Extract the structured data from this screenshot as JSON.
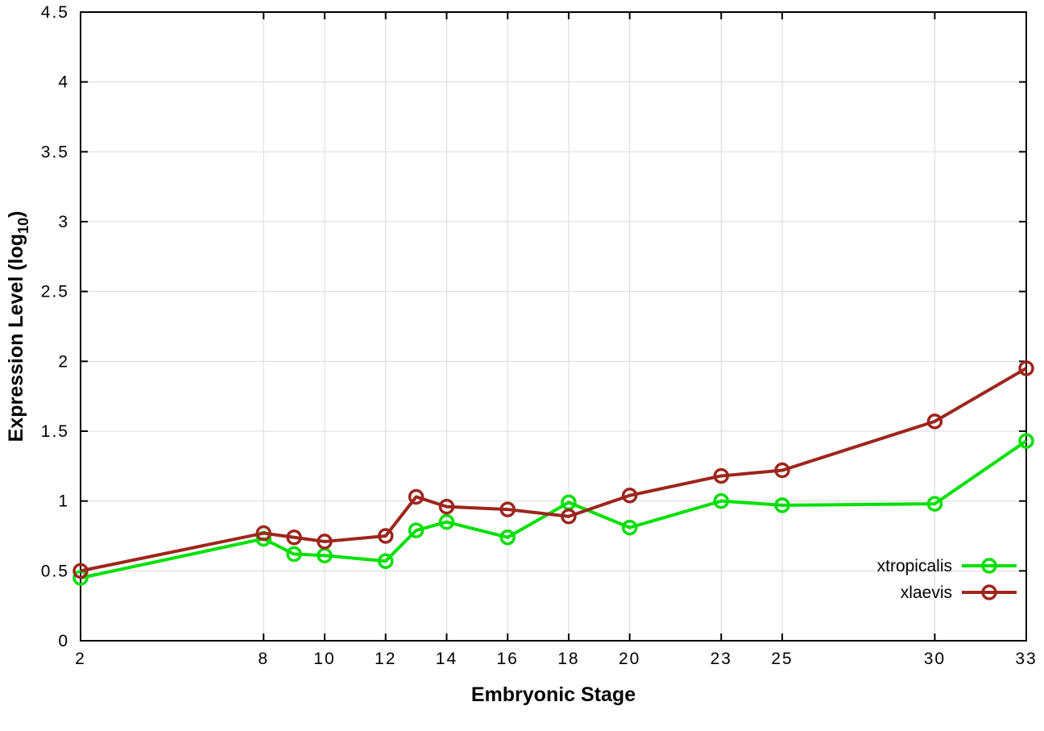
{
  "chart_data": {
    "type": "line",
    "title": "",
    "xlabel": "Embryonic Stage",
    "ylabel_prefix": "Expression Level (log",
    "ylabel_sub": "10",
    "ylabel_suffix": ")",
    "xlim": [
      2,
      33
    ],
    "ylim": [
      0,
      4.5
    ],
    "grid": true,
    "legend_position": "bottom-right",
    "x": [
      2,
      8,
      9,
      10,
      12,
      13,
      14,
      16,
      18,
      20,
      23,
      25,
      30,
      33
    ],
    "xticks": [
      2,
      8,
      10,
      12,
      14,
      16,
      18,
      20,
      23,
      25,
      30,
      33
    ],
    "xtick_labels": [
      "2",
      "8",
      "10",
      "12",
      "14",
      "16",
      "18",
      "20",
      "23",
      "25",
      "30",
      "33"
    ],
    "yticks": [
      0,
      0.5,
      1,
      1.5,
      2,
      2.5,
      3,
      3.5,
      4,
      4.5
    ],
    "ytick_labels": [
      "0",
      "0.5",
      "1",
      "1.5",
      "2",
      "2.5",
      "3",
      "3.5",
      "4",
      "4.5"
    ],
    "series": [
      {
        "name": "xtropicalis",
        "color": "#00e000",
        "marker": "open-circle",
        "values": [
          0.45,
          0.73,
          0.62,
          0.61,
          0.57,
          0.79,
          0.85,
          0.74,
          0.99,
          0.81,
          1.0,
          0.97,
          0.98,
          1.43
        ]
      },
      {
        "name": "xlaevis",
        "color": "#9d261d",
        "marker": "open-circle",
        "values": [
          0.5,
          0.77,
          0.74,
          0.71,
          0.75,
          1.03,
          0.96,
          0.94,
          0.89,
          1.04,
          1.18,
          1.22,
          1.57,
          1.95
        ]
      }
    ],
    "style": {
      "background": "#ffffff",
      "grid_color": "#d9d9d9",
      "border_color": "#000000",
      "line_width": 4,
      "marker_radius": 8
    }
  }
}
